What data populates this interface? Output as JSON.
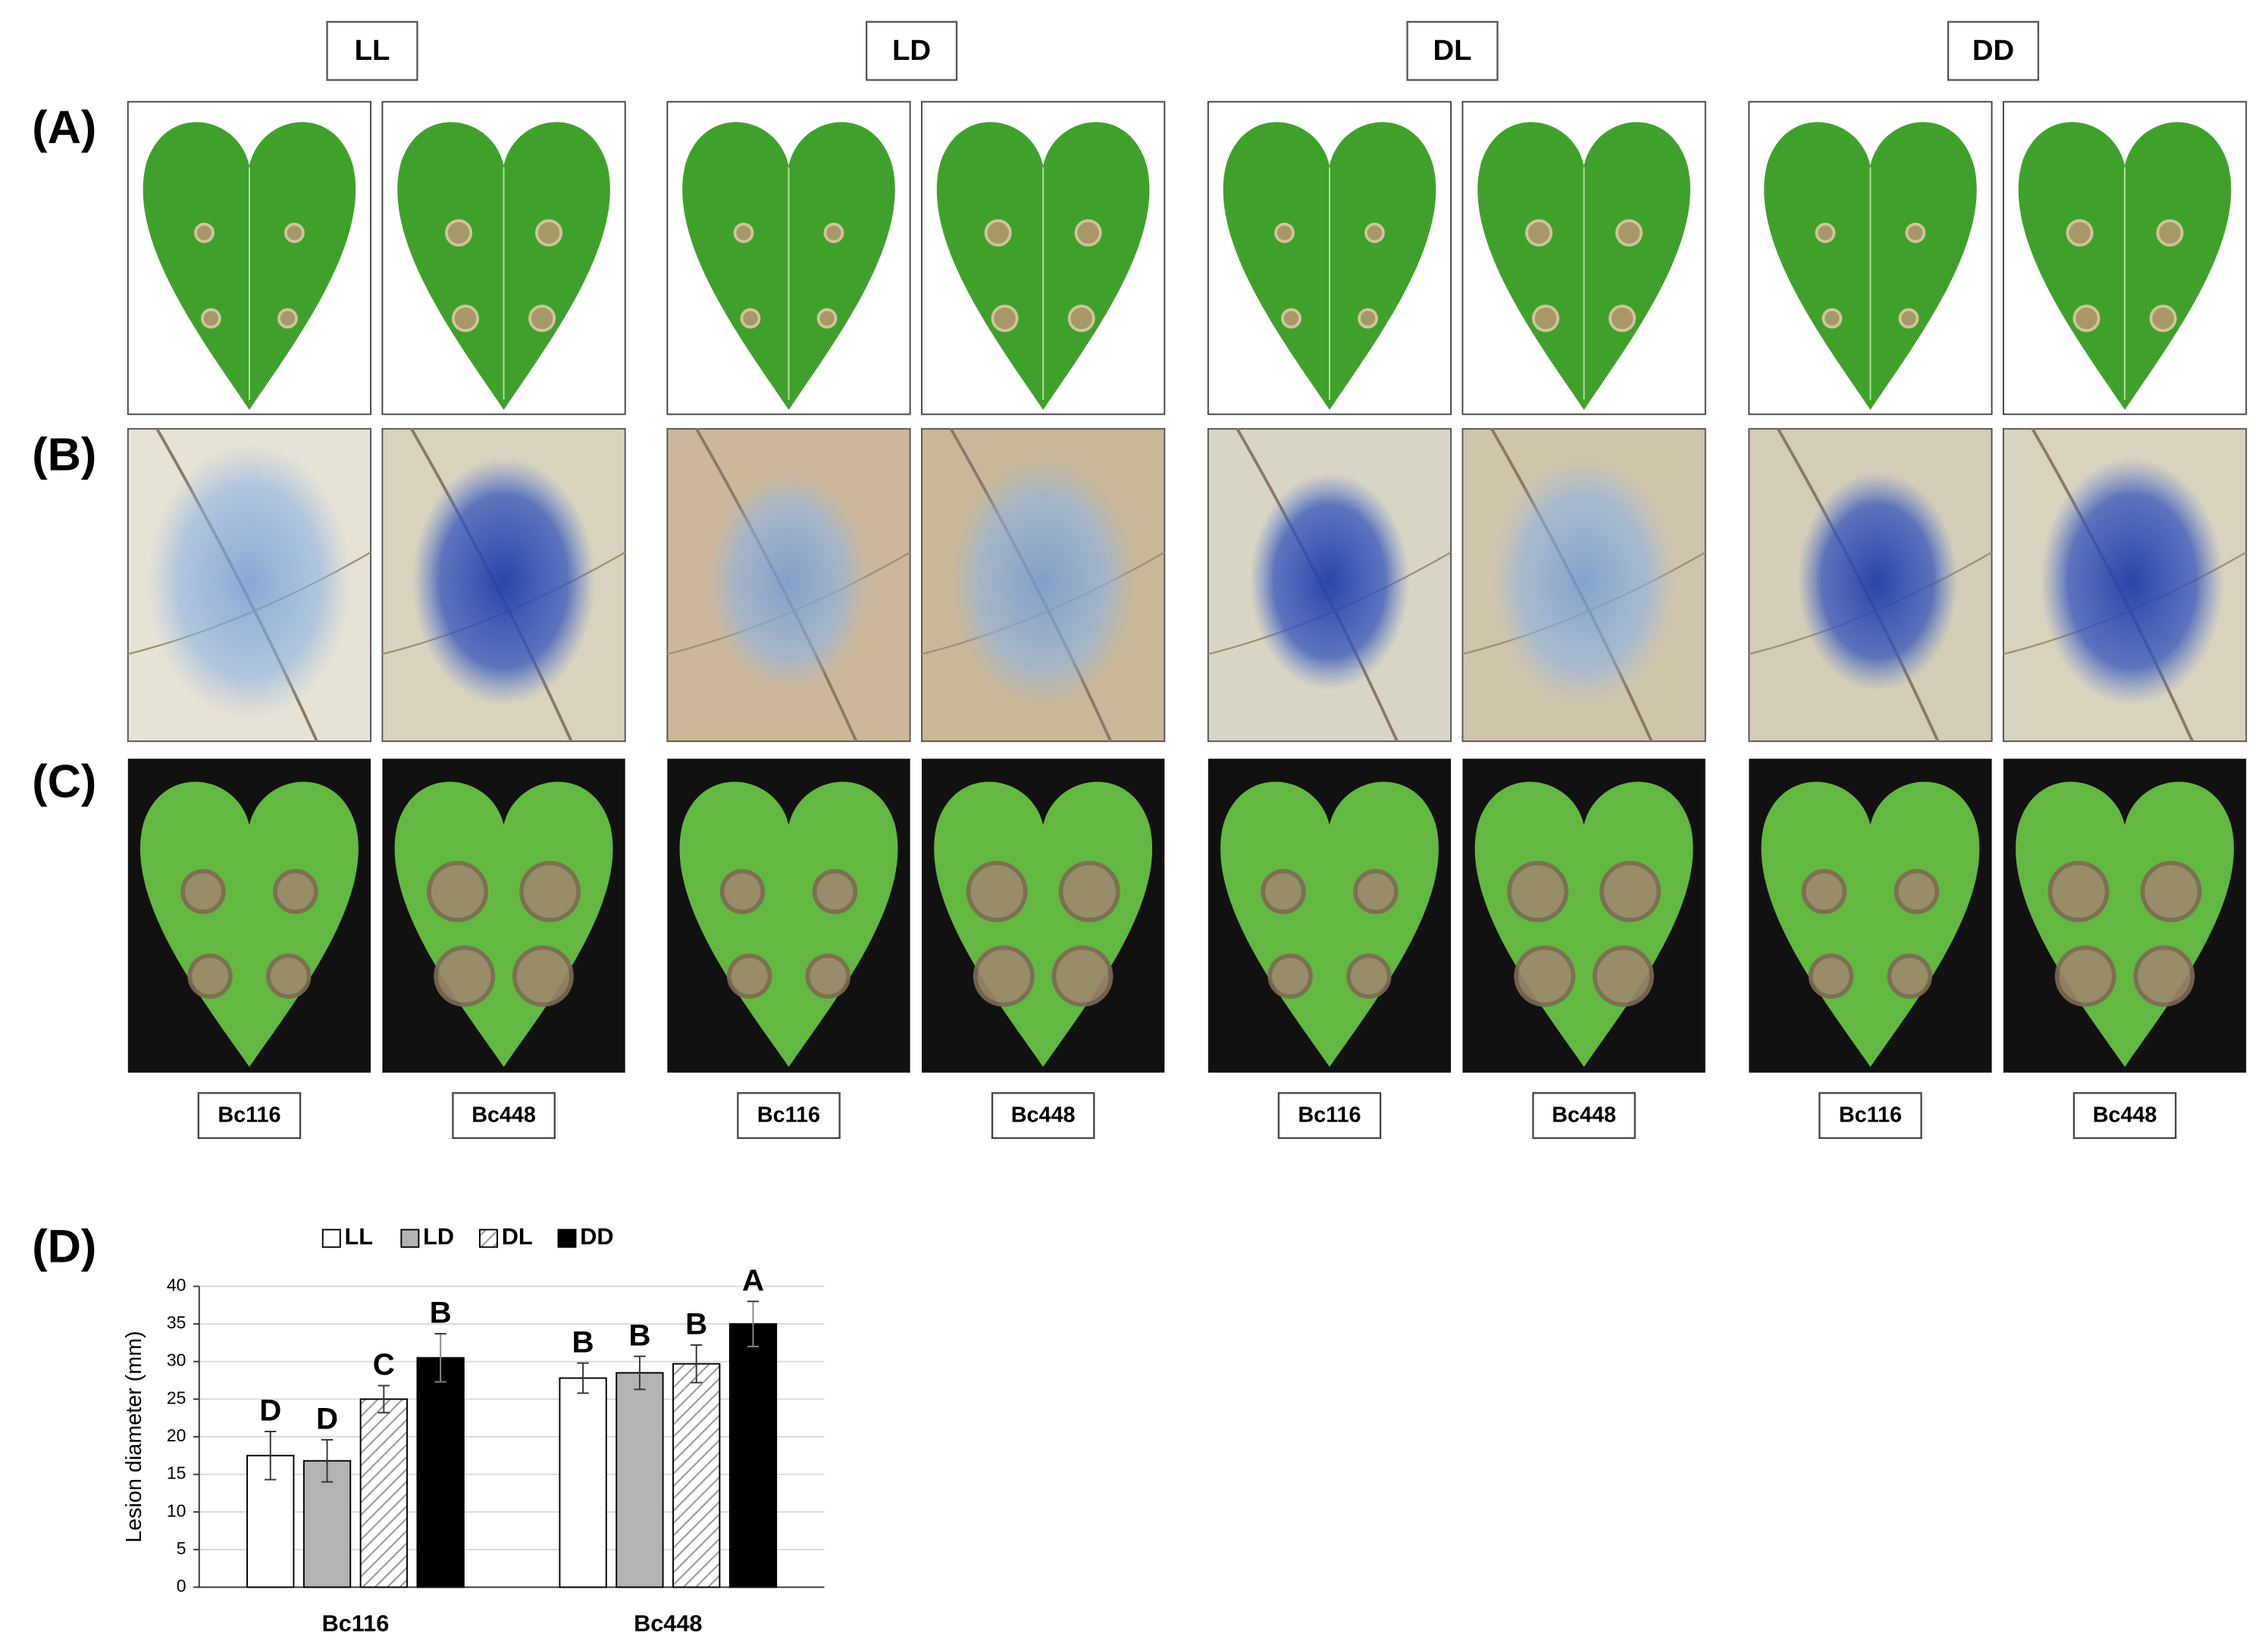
{
  "figure": {
    "panel_labels": [
      "(A)",
      "(B)",
      "(C)",
      "(D)"
    ],
    "columns": [
      {
        "condition": "LL",
        "strains": [
          "Bc116",
          "Bc448"
        ]
      },
      {
        "condition": "LD",
        "strains": [
          "Bc116",
          "Bc448"
        ]
      },
      {
        "condition": "DL",
        "strains": [
          "Bc116",
          "Bc448"
        ]
      },
      {
        "condition": "DD",
        "strains": [
          "Bc116",
          "Bc448"
        ]
      }
    ]
  },
  "chart_data": {
    "type": "bar",
    "categories": [
      "Bc116",
      "Bc448"
    ],
    "ylabel": "Lesion diameter (mm)",
    "ylim": [
      0,
      40
    ],
    "yticks": [
      0,
      5,
      10,
      15,
      20,
      25,
      30,
      35,
      40
    ],
    "grid": true,
    "legend": "top",
    "series": [
      {
        "name": "LL",
        "color": "#ffffff",
        "values": [
          17.5,
          27.8
        ],
        "errors": [
          3.2,
          2.0
        ],
        "letters": [
          "D",
          "B"
        ]
      },
      {
        "name": "LD",
        "color": "#b3b3b3",
        "values": [
          16.8,
          28.5
        ],
        "errors": [
          2.8,
          2.2
        ],
        "letters": [
          "D",
          "B"
        ]
      },
      {
        "name": "DL",
        "color": "#ffffff",
        "pattern": "hatch",
        "values": [
          25.0,
          29.7
        ],
        "errors": [
          1.8,
          2.5
        ],
        "letters": [
          "C",
          "B"
        ]
      },
      {
        "name": "DD",
        "color": "#000000",
        "values": [
          30.5,
          35.0
        ],
        "errors": [
          3.2,
          3.0
        ],
        "letters": [
          "B",
          "A"
        ]
      }
    ]
  }
}
